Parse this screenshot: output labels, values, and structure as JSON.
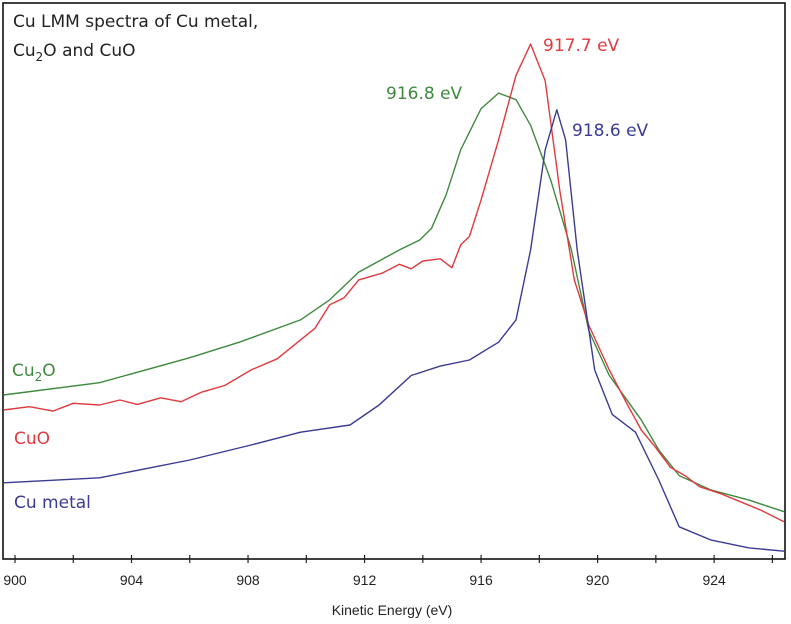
{
  "chart_data": {
    "type": "line",
    "title_lines": [
      "Cu LMM spectra of Cu metal,",
      "Cu₂O and CuO"
    ],
    "title_parts": {
      "line1": "Cu LMM spectra of Cu metal,",
      "line2_a": "Cu",
      "line2_sub": "2",
      "line2_b": "O and CuO"
    },
    "xlabel": "Kinetic Energy (eV)",
    "ylabel": "",
    "xlim": [
      899.6,
      926.4
    ],
    "ylim": [
      0,
      100
    ],
    "grid": false,
    "x_ticks": [
      900,
      902,
      904,
      906,
      908,
      910,
      912,
      914,
      916,
      918,
      920,
      922,
      924,
      926
    ],
    "x_tick_labels": [
      "900",
      "904",
      "908",
      "912",
      "916",
      "920",
      "924"
    ],
    "x_tick_label_values": [
      900,
      904,
      908,
      912,
      916,
      920,
      924
    ],
    "series": [
      {
        "name": "Cu2O",
        "label_main": "Cu",
        "label_sub": "2",
        "label_tail": "O",
        "color": "#3f8a3f",
        "peak_label": "916.8 eV",
        "peak_x": 916.8,
        "x": [
          899.6,
          902.9,
          906.0,
          907.7,
          909.8,
          910.8,
          911.8,
          913.2,
          913.9,
          914.3,
          914.8,
          915.3,
          916.0,
          916.6,
          917.2,
          917.7,
          918.4,
          919.1,
          919.7,
          920.4,
          921.5,
          922.1,
          922.8,
          923.9,
          925.2,
          926.4
        ],
        "y": [
          29.5,
          31.7,
          36.2,
          39.0,
          43.0,
          46.6,
          51.6,
          55.6,
          57.4,
          59.5,
          65.5,
          73.6,
          81.0,
          83.8,
          82.6,
          78.0,
          68.0,
          55.6,
          41.0,
          33.0,
          25.0,
          19.6,
          15.0,
          12.4,
          10.6,
          8.5
        ]
      },
      {
        "name": "CuO",
        "label_main": "CuO",
        "label_sub": "",
        "label_tail": "",
        "color": "#e0393e",
        "peak_label": "917.7 eV",
        "peak_x": 917.7,
        "x": [
          899.6,
          900.5,
          901.3,
          902.0,
          902.9,
          903.6,
          904.2,
          905.0,
          905.7,
          906.4,
          907.2,
          908.1,
          909.0,
          909.8,
          910.3,
          910.8,
          911.3,
          911.8,
          912.2,
          912.6,
          913.2,
          913.6,
          914.0,
          914.6,
          915.0,
          915.3,
          915.6,
          916.0,
          916.6,
          917.2,
          917.7,
          918.2,
          918.7,
          919.2,
          919.7,
          920.4,
          921.0,
          921.5,
          922.0,
          922.5,
          923.0,
          923.5,
          924.2,
          924.9,
          925.6,
          926.4
        ],
        "y": [
          26.8,
          27.4,
          26.6,
          28.0,
          27.7,
          28.6,
          27.8,
          29.0,
          28.3,
          30.0,
          31.2,
          34.0,
          36.0,
          39.4,
          41.5,
          45.7,
          47.0,
          50.2,
          50.8,
          51.4,
          53.0,
          52.2,
          53.6,
          54.0,
          52.4,
          56.5,
          58.0,
          64.6,
          75.4,
          87.0,
          92.6,
          86.0,
          66.4,
          50.2,
          42.0,
          34.0,
          28.0,
          23.2,
          20.0,
          16.5,
          15.0,
          13.0,
          11.8,
          10.3,
          8.8,
          6.7
        ]
      },
      {
        "name": "Cu metal",
        "label_main": "Cu metal",
        "label_sub": "",
        "label_tail": "",
        "color": "#3b3b94",
        "peak_label": "918.6 eV",
        "peak_x": 918.6,
        "x": [
          899.6,
          902.9,
          906.0,
          908.1,
          909.8,
          911.5,
          912.5,
          913.6,
          914.6,
          915.6,
          916.6,
          917.2,
          917.7,
          918.2,
          918.6,
          918.9,
          919.3,
          919.9,
          920.5,
          921.3,
          922.1,
          922.8,
          923.9,
          925.2,
          926.4
        ],
        "y": [
          13.7,
          14.6,
          17.8,
          20.5,
          22.8,
          24.1,
          27.7,
          33.0,
          34.7,
          35.8,
          39.0,
          43.0,
          55.6,
          73.6,
          80.8,
          75.4,
          55.6,
          34.0,
          26.0,
          22.8,
          14.2,
          5.8,
          3.4,
          2.0,
          1.4
        ]
      }
    ]
  }
}
